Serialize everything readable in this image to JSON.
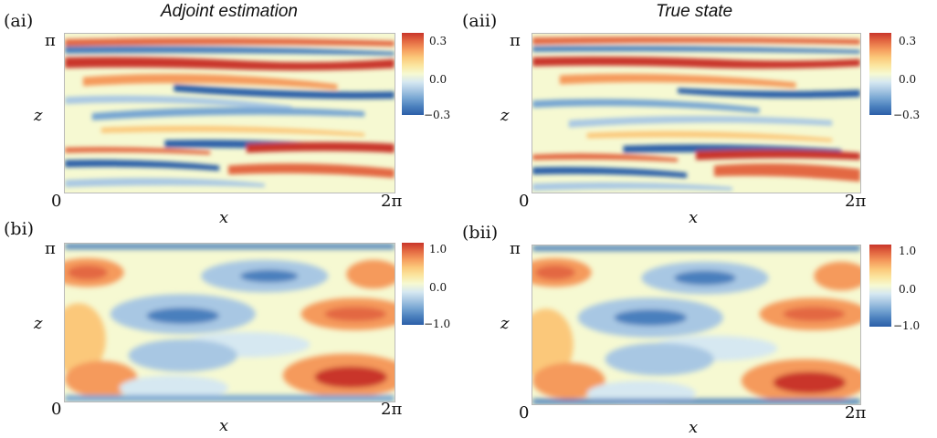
{
  "panels": [
    {
      "label": "(ai)",
      "title": "Adjoint estimation"
    },
    {
      "label": "(aii)",
      "title": "True state"
    },
    {
      "label": "(bi)",
      "title": ""
    },
    {
      "label": "(bii)",
      "title": ""
    }
  ],
  "axes": {
    "xlabel": "x",
    "ylabel": "z",
    "x_tick_min": "0",
    "x_tick_max": "2π",
    "z_tick_max": "π"
  },
  "colorbars": {
    "top": [
      "0.3",
      "0.0",
      "−0.3"
    ],
    "bottom": [
      "1.0",
      "0.0",
      "−1.0"
    ]
  },
  "colormap": [
    "#2c5fa8",
    "#4a7fbd",
    "#76a5d2",
    "#a8c7e3",
    "#d6e8f1",
    "#f6f9d2",
    "#fbe6a0",
    "#fbc87a",
    "#f59a5c",
    "#e36842",
    "#c9352a"
  ],
  "chart_data": [
    {
      "type": "heatmap",
      "title": "Adjoint estimation",
      "xlabel": "x",
      "ylabel": "z",
      "xlim": [
        0,
        6.2832
      ],
      "ylim": [
        0,
        3.1416
      ],
      "zlim": [
        -0.3,
        0.3
      ],
      "colorbar_ticks": [
        0.3,
        0.0,
        -0.3
      ]
    },
    {
      "type": "heatmap",
      "title": "True state",
      "xlabel": "x",
      "ylabel": "z",
      "xlim": [
        0,
        6.2832
      ],
      "ylim": [
        0,
        3.1416
      ],
      "zlim": [
        -0.3,
        0.3
      ],
      "colorbar_ticks": [
        0.3,
        0.0,
        -0.3
      ]
    },
    {
      "type": "heatmap",
      "xlabel": "x",
      "ylabel": "z",
      "xlim": [
        0,
        6.2832
      ],
      "ylim": [
        0,
        3.1416
      ],
      "zlim": [
        -1.0,
        1.0
      ],
      "colorbar_ticks": [
        1.0,
        0.0,
        -1.0
      ]
    },
    {
      "type": "heatmap",
      "xlabel": "x",
      "ylabel": "z",
      "xlim": [
        0,
        6.2832
      ],
      "ylim": [
        0,
        3.1416
      ],
      "zlim": [
        -1.0,
        1.0
      ],
      "colorbar_ticks": [
        1.0,
        0.0,
        -1.0
      ]
    }
  ]
}
